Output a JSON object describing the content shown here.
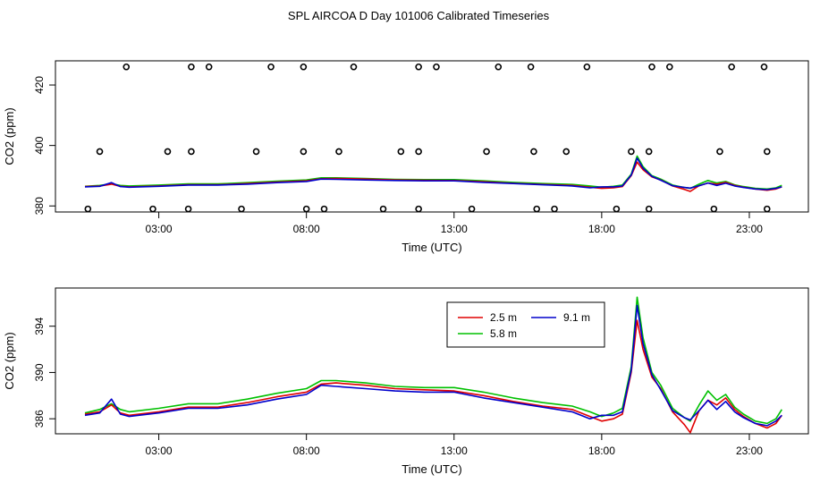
{
  "title": "SPL AIRCOA D  Day 101006  Calibrated Timeseries",
  "colors": {
    "s25": "#e00000",
    "s58": "#00c000",
    "s91": "#0000cc",
    "ref": "#000000"
  },
  "chart_data": [
    {
      "type": "line",
      "panel": "top",
      "xlabel": "Time (UTC)",
      "ylabel": "CO2 (ppm)",
      "xlim": [
        -0.5,
        25.0
      ],
      "ylim": [
        378,
        428
      ],
      "xticks": [
        3,
        8,
        13,
        18,
        23
      ],
      "xtick_labels": [
        "03:00",
        "08:00",
        "13:00",
        "18:00",
        "23:00"
      ],
      "yticks": [
        380,
        400,
        420
      ],
      "ytick_labels": [
        "380",
        "400",
        "420"
      ],
      "reference_points": {
        "name": "calibration reference",
        "marker": "open-circle",
        "x": [
          1.9,
          4.1,
          4.7,
          6.8,
          7.9,
          9.6,
          11.8,
          12.4,
          14.5,
          15.6,
          17.5,
          19.7,
          20.3,
          22.4,
          23.5,
          1.0,
          3.3,
          4.1,
          6.3,
          7.9,
          9.1,
          11.2,
          11.8,
          14.1,
          15.7,
          16.8,
          19.0,
          19.6,
          22.0,
          23.6,
          0.6,
          2.8,
          4.0,
          5.8,
          8.0,
          8.6,
          10.6,
          11.8,
          13.6,
          15.8,
          16.4,
          18.5,
          19.6,
          21.8,
          23.6
        ],
        "y": [
          426,
          426,
          426,
          426,
          426,
          426,
          426,
          426,
          426,
          426,
          426,
          426,
          426,
          426,
          426,
          398,
          398,
          398,
          398,
          398,
          398,
          398,
          398,
          398,
          398,
          398,
          398,
          398,
          398,
          398,
          379,
          379,
          379,
          379,
          379,
          379,
          379,
          379,
          379,
          379,
          379,
          379,
          379,
          379,
          379
        ]
      },
      "x": [
        0.5,
        1.0,
        1.4,
        1.7,
        2.0,
        3.0,
        4.0,
        5.0,
        6.0,
        7.0,
        8.0,
        8.5,
        9.0,
        10.0,
        11.0,
        12.0,
        13.0,
        14.0,
        15.0,
        16.0,
        17.0,
        17.6,
        18.0,
        18.4,
        18.7,
        19.0,
        19.2,
        19.4,
        19.7,
        20.0,
        20.4,
        20.8,
        21.0,
        21.3,
        21.6,
        21.9,
        22.2,
        22.5,
        22.8,
        23.2,
        23.6,
        23.9,
        24.1
      ],
      "series": [
        {
          "name": "2.5 m",
          "color_key": "s25",
          "values": [
            386.4,
            386.6,
            387.2,
            386.5,
            386.3,
            386.6,
            387.0,
            387.0,
            387.4,
            387.9,
            388.3,
            389.0,
            389.1,
            388.9,
            388.6,
            388.5,
            388.4,
            388.0,
            387.5,
            387.1,
            386.8,
            386.2,
            385.8,
            386.0,
            386.4,
            390.0,
            394.5,
            392.0,
            389.6,
            388.6,
            386.6,
            385.5,
            384.8,
            386.7,
            387.6,
            387.2,
            387.8,
            386.8,
            386.2,
            385.6,
            385.2,
            385.6,
            386.3
          ]
        },
        {
          "name": "5.8 m",
          "color_key": "s58",
          "values": [
            386.5,
            386.8,
            387.3,
            386.8,
            386.6,
            386.9,
            387.3,
            387.3,
            387.7,
            388.2,
            388.6,
            389.3,
            389.3,
            389.1,
            388.8,
            388.7,
            388.7,
            388.3,
            387.8,
            387.4,
            387.1,
            386.6,
            386.2,
            386.5,
            386.9,
            390.5,
            396.5,
            393.0,
            390.0,
            388.9,
            386.9,
            386.1,
            385.8,
            387.2,
            388.4,
            387.6,
            388.1,
            387.0,
            386.4,
            385.8,
            385.6,
            386.0,
            386.8
          ]
        },
        {
          "name": "9.1 m",
          "color_key": "s91",
          "values": [
            386.3,
            386.5,
            387.7,
            386.4,
            386.2,
            386.5,
            386.9,
            386.9,
            387.2,
            387.7,
            388.1,
            388.9,
            388.8,
            388.6,
            388.4,
            388.3,
            388.3,
            387.8,
            387.4,
            387.0,
            386.6,
            386.0,
            386.3,
            386.3,
            386.6,
            390.2,
            395.8,
            392.5,
            389.8,
            388.5,
            386.7,
            386.1,
            385.9,
            386.7,
            387.6,
            386.8,
            387.5,
            386.6,
            386.1,
            385.6,
            385.4,
            385.8,
            386.3
          ]
        }
      ]
    },
    {
      "type": "line",
      "panel": "bottom",
      "xlabel": "Time (UTC)",
      "ylabel": "CO2 (ppm)",
      "xlim": [
        -0.5,
        25.0
      ],
      "ylim": [
        384.7,
        397.3
      ],
      "xticks": [
        3,
        8,
        13,
        18,
        23
      ],
      "xtick_labels": [
        "03:00",
        "08:00",
        "13:00",
        "18:00",
        "23:00"
      ],
      "yticks": [
        386,
        390,
        394
      ],
      "ytick_labels": [
        "386",
        "390",
        "394"
      ],
      "legend": {
        "placement": "top-right",
        "entries": [
          "2.5 m",
          "9.1 m",
          "5.8 m"
        ]
      },
      "x": [
        0.5,
        1.0,
        1.4,
        1.7,
        2.0,
        3.0,
        4.0,
        5.0,
        6.0,
        7.0,
        8.0,
        8.5,
        9.0,
        10.0,
        11.0,
        12.0,
        13.0,
        14.0,
        15.0,
        16.0,
        17.0,
        17.6,
        18.0,
        18.4,
        18.7,
        19.0,
        19.2,
        19.4,
        19.7,
        20.0,
        20.4,
        20.8,
        21.0,
        21.3,
        21.6,
        21.9,
        22.2,
        22.5,
        22.8,
        23.2,
        23.6,
        23.9,
        24.1
      ],
      "series": [
        {
          "name": "2.5 m",
          "color_key": "s25",
          "values": [
            386.4,
            386.6,
            387.2,
            386.5,
            386.3,
            386.6,
            387.0,
            387.0,
            387.4,
            387.9,
            388.3,
            389.0,
            389.1,
            388.9,
            388.6,
            388.5,
            388.4,
            388.0,
            387.5,
            387.1,
            386.8,
            386.2,
            385.8,
            386.0,
            386.4,
            390.0,
            394.5,
            392.0,
            389.6,
            388.6,
            386.6,
            385.5,
            384.8,
            386.7,
            387.6,
            387.2,
            387.8,
            386.8,
            386.2,
            385.6,
            385.2,
            385.6,
            386.3
          ]
        },
        {
          "name": "5.8 m",
          "color_key": "s58",
          "values": [
            386.5,
            386.8,
            387.3,
            386.8,
            386.6,
            386.9,
            387.3,
            387.3,
            387.7,
            388.2,
            388.6,
            389.3,
            389.3,
            389.1,
            388.8,
            388.7,
            388.7,
            388.3,
            387.8,
            387.4,
            387.1,
            386.6,
            386.2,
            386.5,
            386.9,
            390.5,
            396.5,
            393.0,
            390.0,
            388.9,
            386.9,
            386.1,
            385.8,
            387.2,
            388.4,
            387.6,
            388.1,
            387.0,
            386.4,
            385.8,
            385.6,
            386.0,
            386.8
          ]
        },
        {
          "name": "9.1 m",
          "color_key": "s91",
          "values": [
            386.3,
            386.5,
            387.7,
            386.4,
            386.2,
            386.5,
            386.9,
            386.9,
            387.2,
            387.7,
            388.1,
            388.9,
            388.8,
            388.6,
            388.4,
            388.3,
            388.3,
            387.8,
            387.4,
            387.0,
            386.6,
            386.0,
            386.3,
            386.3,
            386.6,
            390.2,
            395.8,
            392.5,
            389.8,
            388.5,
            386.7,
            386.1,
            385.9,
            386.7,
            387.6,
            386.8,
            387.5,
            386.6,
            386.1,
            385.6,
            385.4,
            385.8,
            386.3
          ]
        }
      ]
    }
  ]
}
